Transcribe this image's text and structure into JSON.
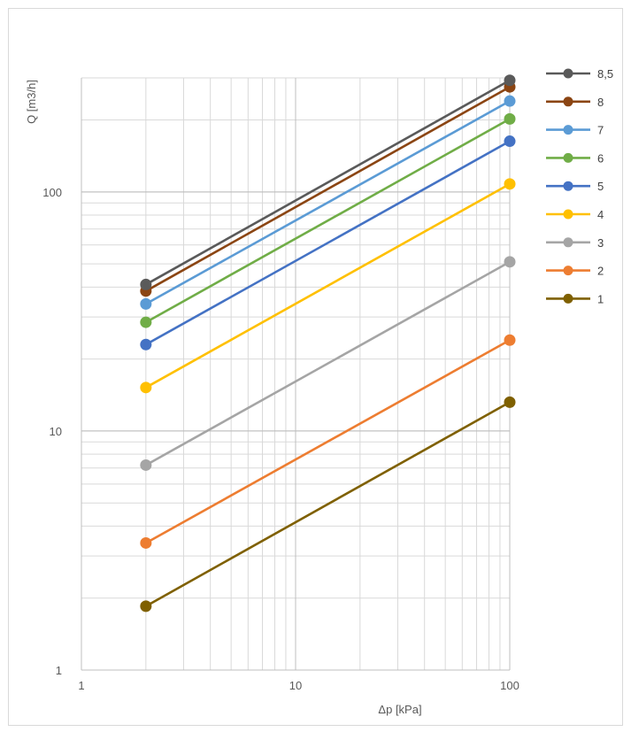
{
  "chart_data": {
    "type": "line",
    "xlabel": "Δp  [kPa]",
    "ylabel": "Q  [m3/h]",
    "xscale": "log",
    "yscale": "log",
    "xlim": [
      1,
      100
    ],
    "ylim": [
      1,
      300
    ],
    "x_ticks": [
      "1",
      "10",
      "100"
    ],
    "y_ticks": [
      "1",
      "10",
      "100"
    ],
    "grid": true,
    "legend_position": "right",
    "series": [
      {
        "name": "8,5",
        "color": "#5a5a5a",
        "x": [
          2,
          100
        ],
        "y": [
          41,
          293
        ]
      },
      {
        "name": "8",
        "color": "#8b4513",
        "x": [
          2,
          100
        ],
        "y": [
          38.5,
          275
        ]
      },
      {
        "name": "7",
        "color": "#5b9bd5",
        "x": [
          2,
          100
        ],
        "y": [
          34,
          240
        ]
      },
      {
        "name": "6",
        "color": "#70ad47",
        "x": [
          2,
          100
        ],
        "y": [
          28.5,
          202
        ]
      },
      {
        "name": "5",
        "color": "#4472c4",
        "x": [
          2,
          100
        ],
        "y": [
          23,
          163
        ]
      },
      {
        "name": "4",
        "color": "#ffc000",
        "x": [
          2,
          100
        ],
        "y": [
          15.2,
          108
        ]
      },
      {
        "name": "3",
        "color": "#a5a5a5",
        "x": [
          2,
          100
        ],
        "y": [
          7.2,
          51
        ]
      },
      {
        "name": "2",
        "color": "#ed7d31",
        "x": [
          2,
          100
        ],
        "y": [
          3.4,
          24
        ]
      },
      {
        "name": "1",
        "color": "#7f6000",
        "x": [
          2,
          100
        ],
        "y": [
          1.85,
          13.2
        ]
      }
    ]
  }
}
